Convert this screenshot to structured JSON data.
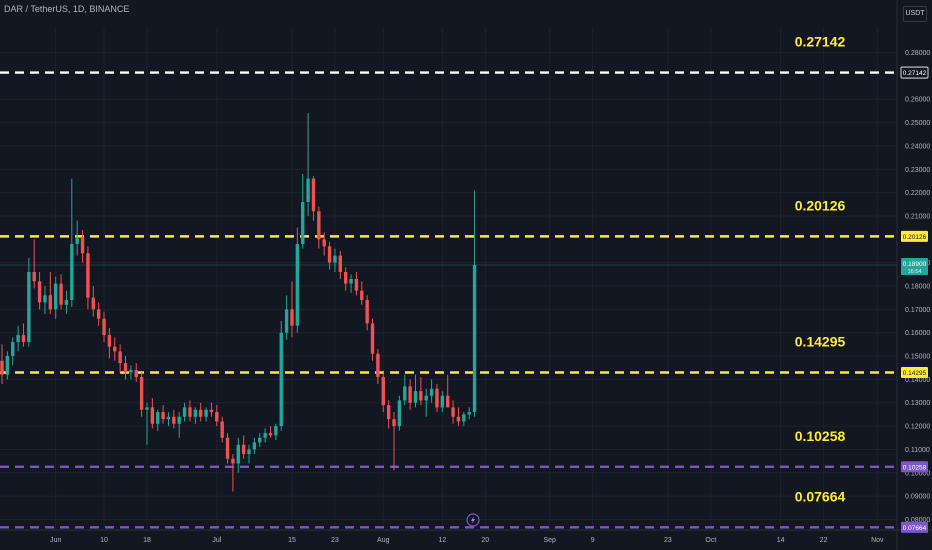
{
  "header": {
    "pair_text": "DAR / TetherUS, 1D, BINANCE",
    "currency_button": "USDT"
  },
  "colors": {
    "background": "#131722",
    "up": "#26a69a",
    "down": "#ef5350",
    "yellow": "#ffeb3b",
    "white": "#ffffff",
    "purple": "#7e57c2",
    "axis_text": "#b2b5be",
    "grid": "#1e222d"
  },
  "chart_data": {
    "type": "candlestick",
    "title": "",
    "xlabel": "",
    "ylabel": "",
    "ylim": [
      0.0755,
      0.2905
    ],
    "y_ticks": [
      "0.28000",
      "0.26000",
      "0.25000",
      "0.24000",
      "0.23000",
      "0.22000",
      "0.21000",
      "0.19000",
      "0.18000",
      "0.17000",
      "0.16000",
      "0.15000",
      "0.14000",
      "0.13000",
      "0.12000",
      "0.11000",
      "0.10000",
      "0.09000",
      "0.08000"
    ],
    "x_ticks": [
      {
        "label": "Jun",
        "date": "2024-06-01"
      },
      {
        "label": "10",
        "date": "2024-06-10"
      },
      {
        "label": "18",
        "date": "2024-06-18"
      },
      {
        "label": "Jul",
        "date": "2024-07-01"
      },
      {
        "label": "15",
        "date": "2024-07-15"
      },
      {
        "label": "23",
        "date": "2024-07-23"
      },
      {
        "label": "Aug",
        "date": "2024-08-01"
      },
      {
        "label": "12",
        "date": "2024-08-12"
      },
      {
        "label": "20",
        "date": "2024-08-20"
      },
      {
        "label": "Sep",
        "date": "2024-09-01"
      },
      {
        "label": "9",
        "date": "2024-09-09"
      },
      {
        "label": "23",
        "date": "2024-09-23"
      },
      {
        "label": "Oct",
        "date": "2024-10-01"
      },
      {
        "label": "14",
        "date": "2024-10-14"
      },
      {
        "label": "22",
        "date": "2024-10-22"
      },
      {
        "label": "Nov",
        "date": "2024-11-01"
      }
    ],
    "levels": [
      {
        "value": 0.27142,
        "label": "0.27142",
        "axis_label": "0.27142",
        "color": "#ffffff"
      },
      {
        "value": 0.20126,
        "label": "0.20126",
        "axis_label": "0.20126",
        "color": "#ffeb3b"
      },
      {
        "value": 0.14295,
        "label": "0.14295",
        "axis_label": "0.14295",
        "color": "#ffeb3b"
      },
      {
        "value": 0.10258,
        "label": "0.10258",
        "axis_label": "0.10258",
        "color": "#7e57c2"
      },
      {
        "value": 0.07664,
        "label": "0.07664",
        "axis_label": "0.07664",
        "color": "#7e57c2"
      }
    ],
    "last_price": {
      "value": 0.189,
      "label": "0.18900",
      "countdown": "16:54"
    },
    "candles": [
      {
        "date": "2024-05-22",
        "o": 0.148,
        "h": 0.155,
        "l": 0.138,
        "c": 0.142
      },
      {
        "date": "2024-05-23",
        "o": 0.142,
        "h": 0.152,
        "l": 0.14,
        "c": 0.15
      },
      {
        "date": "2024-05-24",
        "o": 0.15,
        "h": 0.158,
        "l": 0.146,
        "c": 0.156
      },
      {
        "date": "2024-05-25",
        "o": 0.156,
        "h": 0.163,
        "l": 0.152,
        "c": 0.159
      },
      {
        "date": "2024-05-26",
        "o": 0.159,
        "h": 0.164,
        "l": 0.154,
        "c": 0.156
      },
      {
        "date": "2024-05-27",
        "o": 0.156,
        "h": 0.192,
        "l": 0.154,
        "c": 0.186
      },
      {
        "date": "2024-05-28",
        "o": 0.186,
        "h": 0.2,
        "l": 0.179,
        "c": 0.182
      },
      {
        "date": "2024-05-29",
        "o": 0.182,
        "h": 0.186,
        "l": 0.17,
        "c": 0.173
      },
      {
        "date": "2024-05-30",
        "o": 0.173,
        "h": 0.18,
        "l": 0.168,
        "c": 0.176
      },
      {
        "date": "2024-05-31",
        "o": 0.176,
        "h": 0.186,
        "l": 0.168,
        "c": 0.17
      },
      {
        "date": "2024-06-01",
        "o": 0.17,
        "h": 0.184,
        "l": 0.166,
        "c": 0.181
      },
      {
        "date": "2024-06-02",
        "o": 0.181,
        "h": 0.185,
        "l": 0.17,
        "c": 0.172
      },
      {
        "date": "2024-06-03",
        "o": 0.172,
        "h": 0.178,
        "l": 0.168,
        "c": 0.174
      },
      {
        "date": "2024-06-04",
        "o": 0.174,
        "h": 0.226,
        "l": 0.171,
        "c": 0.198
      },
      {
        "date": "2024-06-05",
        "o": 0.198,
        "h": 0.208,
        "l": 0.193,
        "c": 0.201
      },
      {
        "date": "2024-06-06",
        "o": 0.201,
        "h": 0.204,
        "l": 0.19,
        "c": 0.194
      },
      {
        "date": "2024-06-07",
        "o": 0.194,
        "h": 0.197,
        "l": 0.17,
        "c": 0.175
      },
      {
        "date": "2024-06-08",
        "o": 0.175,
        "h": 0.18,
        "l": 0.167,
        "c": 0.17
      },
      {
        "date": "2024-06-09",
        "o": 0.17,
        "h": 0.173,
        "l": 0.163,
        "c": 0.166
      },
      {
        "date": "2024-06-10",
        "o": 0.166,
        "h": 0.169,
        "l": 0.156,
        "c": 0.159
      },
      {
        "date": "2024-06-11",
        "o": 0.159,
        "h": 0.162,
        "l": 0.149,
        "c": 0.154
      },
      {
        "date": "2024-06-12",
        "o": 0.154,
        "h": 0.158,
        "l": 0.148,
        "c": 0.152
      },
      {
        "date": "2024-06-13",
        "o": 0.152,
        "h": 0.155,
        "l": 0.143,
        "c": 0.147
      },
      {
        "date": "2024-06-14",
        "o": 0.147,
        "h": 0.15,
        "l": 0.14,
        "c": 0.143
      },
      {
        "date": "2024-06-15",
        "o": 0.143,
        "h": 0.146,
        "l": 0.14,
        "c": 0.144
      },
      {
        "date": "2024-06-16",
        "o": 0.144,
        "h": 0.147,
        "l": 0.139,
        "c": 0.141
      },
      {
        "date": "2024-06-17",
        "o": 0.141,
        "h": 0.143,
        "l": 0.124,
        "c": 0.127
      },
      {
        "date": "2024-06-18",
        "o": 0.127,
        "h": 0.13,
        "l": 0.112,
        "c": 0.128
      },
      {
        "date": "2024-06-19",
        "o": 0.128,
        "h": 0.132,
        "l": 0.119,
        "c": 0.121
      },
      {
        "date": "2024-06-20",
        "o": 0.121,
        "h": 0.127,
        "l": 0.118,
        "c": 0.126
      },
      {
        "date": "2024-06-21",
        "o": 0.126,
        "h": 0.129,
        "l": 0.121,
        "c": 0.123
      },
      {
        "date": "2024-06-22",
        "o": 0.123,
        "h": 0.126,
        "l": 0.12,
        "c": 0.124
      },
      {
        "date": "2024-06-23",
        "o": 0.124,
        "h": 0.127,
        "l": 0.119,
        "c": 0.121
      },
      {
        "date": "2024-06-24",
        "o": 0.121,
        "h": 0.126,
        "l": 0.115,
        "c": 0.124
      },
      {
        "date": "2024-06-25",
        "o": 0.124,
        "h": 0.13,
        "l": 0.122,
        "c": 0.128
      },
      {
        "date": "2024-06-26",
        "o": 0.128,
        "h": 0.131,
        "l": 0.122,
        "c": 0.124
      },
      {
        "date": "2024-06-27",
        "o": 0.124,
        "h": 0.128,
        "l": 0.121,
        "c": 0.127
      },
      {
        "date": "2024-06-28",
        "o": 0.127,
        "h": 0.13,
        "l": 0.122,
        "c": 0.124
      },
      {
        "date": "2024-06-29",
        "o": 0.124,
        "h": 0.128,
        "l": 0.122,
        "c": 0.127
      },
      {
        "date": "2024-06-30",
        "o": 0.127,
        "h": 0.13,
        "l": 0.124,
        "c": 0.126
      },
      {
        "date": "2024-07-01",
        "o": 0.126,
        "h": 0.129,
        "l": 0.12,
        "c": 0.122
      },
      {
        "date": "2024-07-02",
        "o": 0.122,
        "h": 0.124,
        "l": 0.113,
        "c": 0.115
      },
      {
        "date": "2024-07-03",
        "o": 0.115,
        "h": 0.117,
        "l": 0.104,
        "c": 0.106
      },
      {
        "date": "2024-07-04",
        "o": 0.106,
        "h": 0.108,
        "l": 0.092,
        "c": 0.104
      },
      {
        "date": "2024-07-05",
        "o": 0.104,
        "h": 0.115,
        "l": 0.1,
        "c": 0.112
      },
      {
        "date": "2024-07-06",
        "o": 0.112,
        "h": 0.116,
        "l": 0.106,
        "c": 0.108
      },
      {
        "date": "2024-07-07",
        "o": 0.108,
        "h": 0.112,
        "l": 0.104,
        "c": 0.11
      },
      {
        "date": "2024-07-08",
        "o": 0.11,
        "h": 0.115,
        "l": 0.108,
        "c": 0.113
      },
      {
        "date": "2024-07-09",
        "o": 0.113,
        "h": 0.117,
        "l": 0.111,
        "c": 0.115
      },
      {
        "date": "2024-07-10",
        "o": 0.115,
        "h": 0.119,
        "l": 0.113,
        "c": 0.117
      },
      {
        "date": "2024-07-11",
        "o": 0.117,
        "h": 0.12,
        "l": 0.115,
        "c": 0.116
      },
      {
        "date": "2024-07-12",
        "o": 0.116,
        "h": 0.121,
        "l": 0.114,
        "c": 0.12
      },
      {
        "date": "2024-07-13",
        "o": 0.12,
        "h": 0.165,
        "l": 0.118,
        "c": 0.16
      },
      {
        "date": "2024-07-14",
        "o": 0.16,
        "h": 0.176,
        "l": 0.157,
        "c": 0.17
      },
      {
        "date": "2024-07-15",
        "o": 0.17,
        "h": 0.182,
        "l": 0.158,
        "c": 0.163
      },
      {
        "date": "2024-07-16",
        "o": 0.163,
        "h": 0.205,
        "l": 0.16,
        "c": 0.198
      },
      {
        "date": "2024-07-17",
        "o": 0.198,
        "h": 0.228,
        "l": 0.196,
        "c": 0.216
      },
      {
        "date": "2024-07-18",
        "o": 0.216,
        "h": 0.254,
        "l": 0.21,
        "c": 0.226
      },
      {
        "date": "2024-07-19",
        "o": 0.226,
        "h": 0.227,
        "l": 0.208,
        "c": 0.212
      },
      {
        "date": "2024-07-20",
        "o": 0.212,
        "h": 0.214,
        "l": 0.196,
        "c": 0.2
      },
      {
        "date": "2024-07-21",
        "o": 0.2,
        "h": 0.203,
        "l": 0.193,
        "c": 0.197
      },
      {
        "date": "2024-07-22",
        "o": 0.197,
        "h": 0.199,
        "l": 0.187,
        "c": 0.19
      },
      {
        "date": "2024-07-23",
        "o": 0.19,
        "h": 0.196,
        "l": 0.186,
        "c": 0.193
      },
      {
        "date": "2024-07-24",
        "o": 0.193,
        "h": 0.195,
        "l": 0.183,
        "c": 0.186
      },
      {
        "date": "2024-07-25",
        "o": 0.186,
        "h": 0.188,
        "l": 0.178,
        "c": 0.181
      },
      {
        "date": "2024-07-26",
        "o": 0.181,
        "h": 0.185,
        "l": 0.177,
        "c": 0.183
      },
      {
        "date": "2024-07-27",
        "o": 0.183,
        "h": 0.186,
        "l": 0.176,
        "c": 0.178
      },
      {
        "date": "2024-07-28",
        "o": 0.178,
        "h": 0.182,
        "l": 0.172,
        "c": 0.174
      },
      {
        "date": "2024-07-29",
        "o": 0.174,
        "h": 0.176,
        "l": 0.161,
        "c": 0.164
      },
      {
        "date": "2024-07-30",
        "o": 0.164,
        "h": 0.166,
        "l": 0.148,
        "c": 0.151
      },
      {
        "date": "2024-07-31",
        "o": 0.151,
        "h": 0.153,
        "l": 0.138,
        "c": 0.141
      },
      {
        "date": "2024-08-01",
        "o": 0.141,
        "h": 0.143,
        "l": 0.126,
        "c": 0.129
      },
      {
        "date": "2024-08-02",
        "o": 0.129,
        "h": 0.131,
        "l": 0.119,
        "c": 0.123
      },
      {
        "date": "2024-08-03",
        "o": 0.123,
        "h": 0.126,
        "l": 0.101,
        "c": 0.12
      },
      {
        "date": "2024-08-04",
        "o": 0.12,
        "h": 0.133,
        "l": 0.118,
        "c": 0.131
      },
      {
        "date": "2024-08-05",
        "o": 0.131,
        "h": 0.142,
        "l": 0.129,
        "c": 0.137
      },
      {
        "date": "2024-08-06",
        "o": 0.137,
        "h": 0.14,
        "l": 0.127,
        "c": 0.13
      },
      {
        "date": "2024-08-07",
        "o": 0.13,
        "h": 0.142,
        "l": 0.128,
        "c": 0.135
      },
      {
        "date": "2024-08-08",
        "o": 0.135,
        "h": 0.141,
        "l": 0.129,
        "c": 0.131
      },
      {
        "date": "2024-08-09",
        "o": 0.131,
        "h": 0.136,
        "l": 0.124,
        "c": 0.133
      },
      {
        "date": "2024-08-10",
        "o": 0.133,
        "h": 0.14,
        "l": 0.13,
        "c": 0.136
      },
      {
        "date": "2024-08-11",
        "o": 0.136,
        "h": 0.138,
        "l": 0.126,
        "c": 0.128
      },
      {
        "date": "2024-08-12",
        "o": 0.128,
        "h": 0.135,
        "l": 0.126,
        "c": 0.133
      },
      {
        "date": "2024-08-13",
        "o": 0.133,
        "h": 0.142,
        "l": 0.13,
        "c": 0.128
      },
      {
        "date": "2024-08-14",
        "o": 0.128,
        "h": 0.131,
        "l": 0.121,
        "c": 0.124
      },
      {
        "date": "2024-08-15",
        "o": 0.124,
        "h": 0.128,
        "l": 0.12,
        "c": 0.122
      },
      {
        "date": "2024-08-16",
        "o": 0.122,
        "h": 0.126,
        "l": 0.12,
        "c": 0.125
      },
      {
        "date": "2024-08-17",
        "o": 0.125,
        "h": 0.128,
        "l": 0.123,
        "c": 0.126
      },
      {
        "date": "2024-08-18",
        "o": 0.126,
        "h": 0.221,
        "l": 0.124,
        "c": 0.189
      }
    ]
  }
}
